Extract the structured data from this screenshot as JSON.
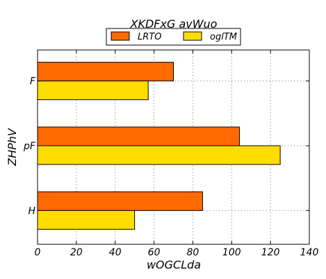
{
  "chart_data": {
    "type": "bar",
    "orientation": "horizontal",
    "title": "XKDFxG avWuo",
    "xlabel": "wOGCLda",
    "ylabel": "ZHPhV",
    "categories": [
      "F",
      "pF",
      "H"
    ],
    "series": [
      {
        "name": "LRTO",
        "values": [
          70,
          104,
          85
        ],
        "color": "#ff6a00"
      },
      {
        "name": "oglTM",
        "values": [
          57,
          125,
          50
        ],
        "color": "#ffdd00"
      }
    ],
    "xlim": [
      0,
      140
    ],
    "xticks": [
      0,
      20,
      40,
      60,
      80,
      100,
      120,
      140
    ],
    "grid": true,
    "legend_position": "top-center"
  }
}
